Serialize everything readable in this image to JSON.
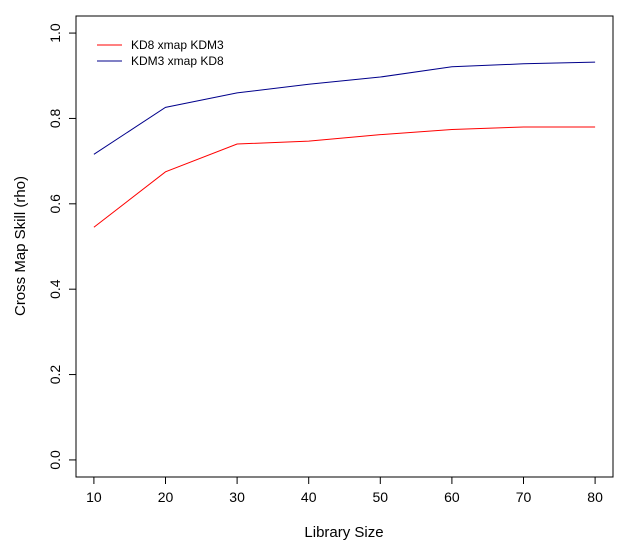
{
  "chart_data": {
    "type": "line",
    "title": "",
    "xlabel": "Library Size",
    "ylabel": "Cross Map Skill (rho)",
    "x": [
      10,
      20,
      30,
      40,
      50,
      60,
      70,
      80
    ],
    "xticks": [
      10,
      20,
      30,
      40,
      50,
      60,
      70,
      80
    ],
    "yticks": [
      0.0,
      0.2,
      0.4,
      0.6,
      0.8,
      1.0
    ],
    "ytick_labels": [
      "0.0",
      "0.2",
      "0.4",
      "0.6",
      "0.8",
      "1.0"
    ],
    "xlim": [
      7.5,
      82.5
    ],
    "ylim": [
      -0.04,
      1.04
    ],
    "grid": false,
    "legend_position": "top-left",
    "series": [
      {
        "name": "KD8 xmap KDM3",
        "color": "#ff0000",
        "values": [
          0.545,
          0.675,
          0.74,
          0.747,
          0.762,
          0.774,
          0.78,
          0.78
        ]
      },
      {
        "name": "KDM3 xmap KD8",
        "color": "#00008b",
        "values": [
          0.716,
          0.826,
          0.86,
          0.88,
          0.897,
          0.921,
          0.928,
          0.932
        ]
      }
    ]
  }
}
